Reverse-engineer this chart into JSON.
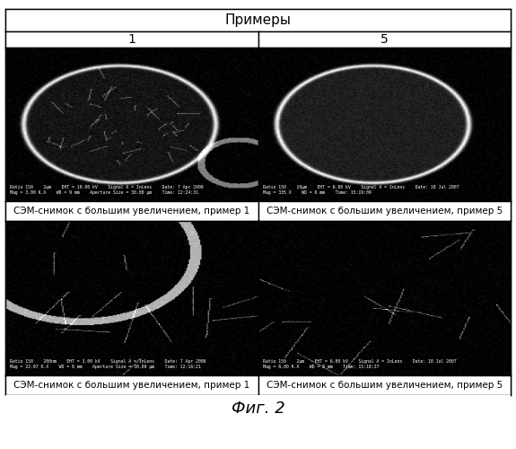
{
  "title": "Примеры",
  "col_labels": [
    "1",
    "5"
  ],
  "captions_top": [
    "СЭМ-снимок с большим увеличением, пример 1",
    "СЭМ-снимок с большим увеличением, пример 5"
  ],
  "captions_bottom": [
    "СЭМ-снимок с большим увеличением, пример 1",
    "СЭМ-снимок с большим увеличением, пример 5"
  ],
  "fig_label": "Фиг. 2",
  "bg_color": "#ffffff",
  "image_bg": "#000000",
  "border_color": "#000000",
  "text_color": "#000000",
  "title_fontsize": 11,
  "label_fontsize": 10,
  "caption_fontsize": 7.5,
  "figlabel_fontsize": 13
}
